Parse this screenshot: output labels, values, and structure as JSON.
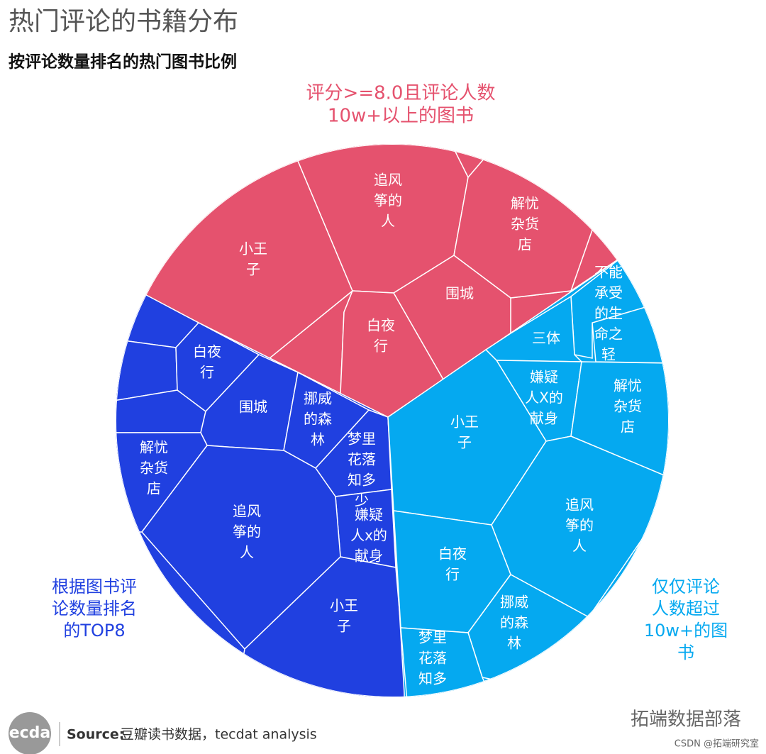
{
  "header": {
    "title": "热门评论的书籍分布",
    "subtitle": "按评论数量排名的热门图书比例"
  },
  "groups": [
    {
      "label": [
        "评分>=8.0且评论人数",
        "10w+以上的图书"
      ],
      "cells": [
        {
          "label": [
            "小王",
            "子"
          ]
        },
        {
          "label": [
            "追风",
            "筝的",
            "人"
          ]
        },
        {
          "label": [
            "解忧",
            "杂货",
            "店"
          ]
        },
        {
          "label": [
            "围城"
          ]
        },
        {
          "label": [
            "白夜",
            "行"
          ]
        }
      ]
    },
    {
      "label": [
        "根据图书评",
        "论数量排名",
        "的TOP8"
      ],
      "cells": [
        {
          "label": [
            "白夜",
            "行"
          ]
        },
        {
          "label": [
            "围城"
          ]
        },
        {
          "label": [
            "挪威",
            "的森",
            "林"
          ]
        },
        {
          "label": [
            "梦里",
            "花落",
            "知多",
            "少"
          ]
        },
        {
          "label": [
            "嫌疑",
            "人x的",
            "献身"
          ]
        },
        {
          "label": [
            "解忧",
            "杂货",
            "店"
          ]
        },
        {
          "label": [
            "追风",
            "筝的",
            "人"
          ]
        },
        {
          "label": [
            "小王",
            "子"
          ]
        }
      ]
    },
    {
      "label": [
        "仅仅评论",
        "人数超过",
        "10w+的图",
        "书"
      ],
      "cells": [
        {
          "label": [
            "不能",
            "承受",
            "的生",
            "命之",
            "轻"
          ]
        },
        {
          "label": [
            "三体"
          ]
        },
        {
          "label": [
            "嫌疑",
            "人X的",
            "献身"
          ]
        },
        {
          "label": [
            "解忧",
            "杂货",
            "店"
          ]
        },
        {
          "label": [
            "小王",
            "子"
          ]
        },
        {
          "label": [
            "追风",
            "筝的",
            "人"
          ]
        },
        {
          "label": [
            "白夜",
            "行"
          ]
        },
        {
          "label": [
            "挪威",
            "的森",
            "林"
          ]
        },
        {
          "label": [
            "梦里",
            "花落",
            "知多"
          ]
        }
      ]
    }
  ],
  "footer": {
    "logo": "tecdat",
    "source_label": "Source:",
    "source": "豆瓣读书数据，tecdat analysis",
    "watermark": "拓端数据部落",
    "credit": "CSDN @拓端研究室"
  }
}
